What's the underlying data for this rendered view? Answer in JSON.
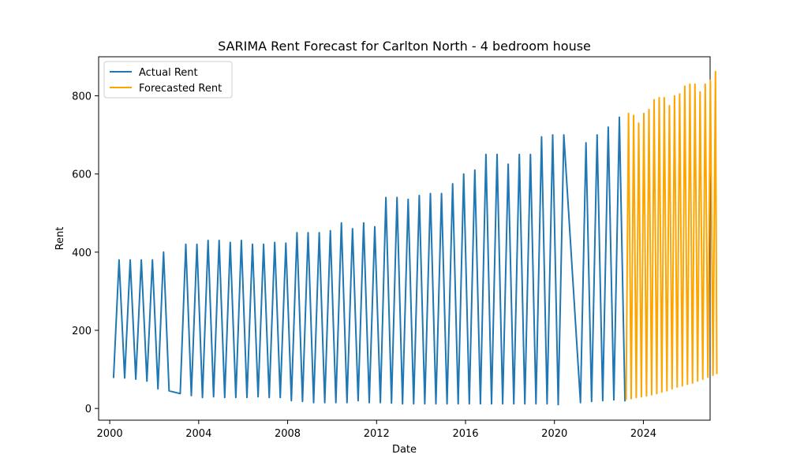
{
  "chart_data": {
    "type": "line",
    "title": "SARIMA Rent Forecast for Carlton North - 4 bedroom house",
    "xlabel": "Date",
    "ylabel": "Rent",
    "xlim": [
      1999.5,
      2027.0
    ],
    "ylim": [
      -30,
      900
    ],
    "xticks": [
      2000,
      2004,
      2008,
      2012,
      2016,
      2020,
      2024
    ],
    "xtick_labels": [
      "2000",
      "2004",
      "2008",
      "2012",
      "2016",
      "2020",
      "2024"
    ],
    "yticks": [
      0,
      200,
      400,
      600,
      800
    ],
    "ytick_labels": [
      "0",
      "200",
      "400",
      "600",
      "800"
    ],
    "grid": false,
    "legend": {
      "placement": "upper-left"
    },
    "series": [
      {
        "name": "Actual Rent",
        "color": "#1f77b4",
        "points": [
          [
            2000.17,
            78
          ],
          [
            2000.42,
            380
          ],
          [
            2000.67,
            78
          ],
          [
            2000.92,
            380
          ],
          [
            2001.17,
            75
          ],
          [
            2001.42,
            380
          ],
          [
            2001.67,
            70
          ],
          [
            2001.92,
            380
          ],
          [
            2002.17,
            50
          ],
          [
            2002.42,
            400
          ],
          [
            2002.67,
            45
          ],
          [
            2003.17,
            38
          ],
          [
            2003.42,
            420
          ],
          [
            2003.67,
            33
          ],
          [
            2003.92,
            420
          ],
          [
            2004.17,
            28
          ],
          [
            2004.42,
            430
          ],
          [
            2004.67,
            30
          ],
          [
            2004.92,
            430
          ],
          [
            2005.17,
            28
          ],
          [
            2005.42,
            425
          ],
          [
            2005.67,
            28
          ],
          [
            2005.92,
            430
          ],
          [
            2006.17,
            28
          ],
          [
            2006.42,
            420
          ],
          [
            2006.67,
            30
          ],
          [
            2006.92,
            420
          ],
          [
            2007.17,
            28
          ],
          [
            2007.42,
            425
          ],
          [
            2007.67,
            28
          ],
          [
            2007.92,
            423
          ],
          [
            2008.17,
            20
          ],
          [
            2008.42,
            450
          ],
          [
            2008.67,
            18
          ],
          [
            2008.92,
            450
          ],
          [
            2009.17,
            15
          ],
          [
            2009.42,
            450
          ],
          [
            2009.67,
            15
          ],
          [
            2009.92,
            455
          ],
          [
            2010.17,
            15
          ],
          [
            2010.42,
            475
          ],
          [
            2010.67,
            15
          ],
          [
            2010.92,
            460
          ],
          [
            2011.17,
            20
          ],
          [
            2011.42,
            475
          ],
          [
            2011.67,
            15
          ],
          [
            2011.92,
            465
          ],
          [
            2012.17,
            15
          ],
          [
            2012.42,
            540
          ],
          [
            2012.67,
            14
          ],
          [
            2012.92,
            540
          ],
          [
            2013.17,
            12
          ],
          [
            2013.42,
            535
          ],
          [
            2013.67,
            12
          ],
          [
            2013.92,
            545
          ],
          [
            2014.17,
            12
          ],
          [
            2014.42,
            550
          ],
          [
            2014.67,
            12
          ],
          [
            2014.92,
            550
          ],
          [
            2015.17,
            12
          ],
          [
            2015.42,
            575
          ],
          [
            2015.67,
            12
          ],
          [
            2015.92,
            600
          ],
          [
            2016.17,
            12
          ],
          [
            2016.42,
            610
          ],
          [
            2016.67,
            12
          ],
          [
            2016.92,
            650
          ],
          [
            2017.17,
            12
          ],
          [
            2017.42,
            650
          ],
          [
            2017.67,
            12
          ],
          [
            2017.92,
            625
          ],
          [
            2018.17,
            12
          ],
          [
            2018.42,
            650
          ],
          [
            2018.67,
            12
          ],
          [
            2018.92,
            650
          ],
          [
            2019.17,
            12
          ],
          [
            2019.42,
            695
          ],
          [
            2019.67,
            12
          ],
          [
            2019.92,
            700
          ],
          [
            2020.17,
            10
          ],
          [
            2020.42,
            700
          ],
          [
            2021.17,
            15
          ],
          [
            2021.42,
            680
          ],
          [
            2021.67,
            18
          ],
          [
            2021.92,
            700
          ],
          [
            2022.17,
            20
          ],
          [
            2022.42,
            720
          ],
          [
            2022.67,
            22
          ],
          [
            2022.92,
            745
          ],
          [
            2023.17,
            18
          ]
        ]
      },
      {
        "name": "Forecasted Rent",
        "color": "#ffa500",
        "points": [
          [
            2023.22,
            22
          ],
          [
            2023.33,
            755
          ],
          [
            2023.45,
            25
          ],
          [
            2023.56,
            750
          ],
          [
            2023.68,
            28
          ],
          [
            2023.79,
            730
          ],
          [
            2023.91,
            30
          ],
          [
            2024.02,
            755
          ],
          [
            2024.14,
            32
          ],
          [
            2024.25,
            765
          ],
          [
            2024.37,
            35
          ],
          [
            2024.48,
            790
          ],
          [
            2024.6,
            38
          ],
          [
            2024.71,
            795
          ],
          [
            2024.83,
            42
          ],
          [
            2024.94,
            795
          ],
          [
            2025.06,
            45
          ],
          [
            2025.17,
            775
          ],
          [
            2025.29,
            50
          ],
          [
            2025.4,
            800
          ],
          [
            2025.52,
            55
          ],
          [
            2025.63,
            805
          ],
          [
            2025.75,
            58
          ],
          [
            2025.86,
            825
          ],
          [
            2025.98,
            62
          ],
          [
            2026.09,
            830
          ],
          [
            2026.21,
            65
          ],
          [
            2026.32,
            830
          ],
          [
            2026.44,
            70
          ],
          [
            2026.55,
            810
          ],
          [
            2026.67,
            75
          ],
          [
            2026.78,
            830
          ],
          [
            2026.9,
            80
          ],
          [
            2027.01,
            840
          ],
          [
            2027.13,
            85
          ],
          [
            2027.24,
            862
          ],
          [
            2027.3,
            88
          ]
        ]
      }
    ]
  }
}
